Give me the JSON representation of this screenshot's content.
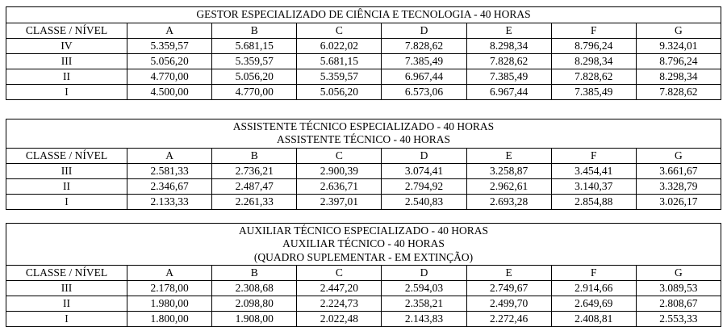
{
  "colors": {
    "background": "#ffffff",
    "text": "#000000",
    "border": "#000000"
  },
  "tables": [
    {
      "title_lines": [
        "GESTOR ESPECIALIZADO DE CIÊNCIA E TECNOLOGIA - 40 HORAS"
      ],
      "header": [
        "CLASSE / NÍVEL",
        "A",
        "B",
        "C",
        "D",
        "E",
        "F",
        "G"
      ],
      "rows": [
        {
          "classe": "IV",
          "values": [
            "5.359,57",
            "5.681,15",
            "6.022,02",
            "7.828,62",
            "8.298,34",
            "8.796,24",
            "9.324,01"
          ]
        },
        {
          "classe": "III",
          "values": [
            "5.056,20",
            "5.359,57",
            "5.681,15",
            "7.385,49",
            "7.828,62",
            "8.298,34",
            "8.796,24"
          ]
        },
        {
          "classe": "II",
          "values": [
            "4.770,00",
            "5.056,20",
            "5.359,57",
            "6.967,44",
            "7.385,49",
            "7.828,62",
            "8.298,34"
          ]
        },
        {
          "classe": "I",
          "values": [
            "4.500,00",
            "4.770,00",
            "5.056,20",
            "6.573,06",
            "6.967,44",
            "7.385,49",
            "7.828,62"
          ]
        }
      ]
    },
    {
      "title_lines": [
        "ASSISTENTE TÉCNICO ESPECIALIZADO - 40 HORAS",
        "ASSISTENTE TÉCNICO - 40 HORAS"
      ],
      "header": [
        "CLASSE / NÍVEL",
        "A",
        "B",
        "C",
        "D",
        "E",
        "F",
        "G"
      ],
      "rows": [
        {
          "classe": "III",
          "values": [
            "2.581,33",
            "2.736,21",
            "2.900,39",
            "3.074,41",
            "3.258,87",
            "3.454,41",
            "3.661,67"
          ]
        },
        {
          "classe": "II",
          "values": [
            "2.346,67",
            "2.487,47",
            "2.636,71",
            "2.794,92",
            "2.962,61",
            "3.140,37",
            "3.328,79"
          ]
        },
        {
          "classe": "I",
          "values": [
            "2.133,33",
            "2.261,33",
            "2.397,01",
            "2.540,83",
            "2.693,28",
            "2.854,88",
            "3.026,17"
          ]
        }
      ]
    },
    {
      "title_lines": [
        "AUXILIAR TÉCNICO ESPECIALIZADO - 40 HORAS",
        "AUXILIAR TÉCNICO - 40 HORAS",
        "(QUADRO SUPLEMENTAR - EM EXTINÇÃO)"
      ],
      "header": [
        "CLASSE / NÍVEL",
        "A",
        "B",
        "C",
        "D",
        "E",
        "F",
        "G"
      ],
      "rows": [
        {
          "classe": "III",
          "values": [
            "2.178,00",
            "2.308,68",
            "2.447,20",
            "2.594,03",
            "2.749,67",
            "2.914,66",
            "3.089,53"
          ]
        },
        {
          "classe": "II",
          "values": [
            "1.980,00",
            "2.098,80",
            "2.224,73",
            "2.358,21",
            "2.499,70",
            "2.649,69",
            "2.808,67"
          ]
        },
        {
          "classe": "I",
          "values": [
            "1.800,00",
            "1.908,00",
            "2.022,48",
            "2.143,83",
            "2.272,46",
            "2.408,81",
            "2.553,33"
          ]
        }
      ]
    }
  ]
}
